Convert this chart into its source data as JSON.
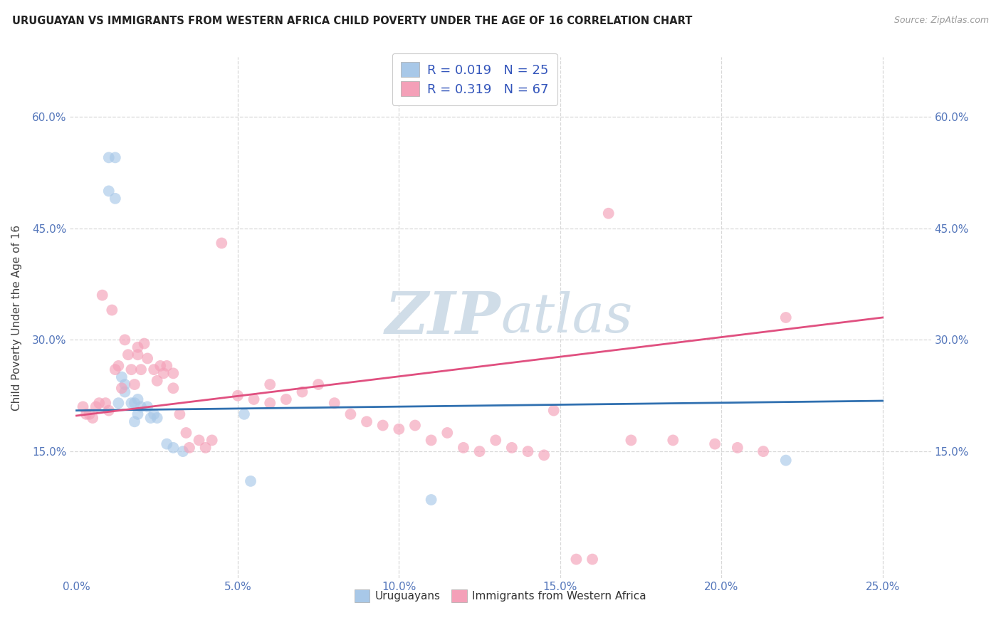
{
  "title": "URUGUAYAN VS IMMIGRANTS FROM WESTERN AFRICA CHILD POVERTY UNDER THE AGE OF 16 CORRELATION CHART",
  "source": "Source: ZipAtlas.com",
  "ylabel": "Child Poverty Under the Age of 16",
  "xlabel_vals": [
    0.0,
    0.05,
    0.1,
    0.15,
    0.2,
    0.25
  ],
  "ylabel_vals": [
    0.15,
    0.3,
    0.45,
    0.6
  ],
  "ylim": [
    -0.02,
    0.68
  ],
  "xlim": [
    -0.002,
    0.265
  ],
  "legend_bottom_blue": "Uruguayans",
  "legend_bottom_pink": "Immigrants from Western Africa",
  "blue_color": "#a8c8e8",
  "pink_color": "#f4a0b8",
  "blue_line_color": "#3070b0",
  "pink_line_color": "#e05080",
  "background_color": "#ffffff",
  "grid_color": "#d8d8d8",
  "watermark_color": "#d0dde8",
  "blue_scatter_x": [
    0.01,
    0.012,
    0.01,
    0.012,
    0.014,
    0.015,
    0.015,
    0.013,
    0.017,
    0.018,
    0.019,
    0.02,
    0.019,
    0.018,
    0.022,
    0.024,
    0.023,
    0.025,
    0.028,
    0.03,
    0.033,
    0.052,
    0.054,
    0.11,
    0.22
  ],
  "blue_scatter_y": [
    0.545,
    0.545,
    0.5,
    0.49,
    0.25,
    0.24,
    0.23,
    0.215,
    0.215,
    0.215,
    0.22,
    0.21,
    0.2,
    0.19,
    0.21,
    0.2,
    0.195,
    0.195,
    0.16,
    0.155,
    0.15,
    0.2,
    0.11,
    0.085,
    0.138
  ],
  "pink_scatter_x": [
    0.002,
    0.003,
    0.004,
    0.005,
    0.006,
    0.007,
    0.008,
    0.009,
    0.01,
    0.011,
    0.012,
    0.013,
    0.014,
    0.015,
    0.016,
    0.017,
    0.018,
    0.019,
    0.019,
    0.02,
    0.021,
    0.022,
    0.024,
    0.025,
    0.026,
    0.027,
    0.028,
    0.03,
    0.03,
    0.032,
    0.034,
    0.035,
    0.038,
    0.04,
    0.042,
    0.045,
    0.05,
    0.055,
    0.06,
    0.06,
    0.065,
    0.07,
    0.075,
    0.08,
    0.085,
    0.09,
    0.095,
    0.1,
    0.105,
    0.11,
    0.115,
    0.12,
    0.125,
    0.13,
    0.135,
    0.14,
    0.145,
    0.148,
    0.155,
    0.16,
    0.165,
    0.172,
    0.185,
    0.198,
    0.205,
    0.213,
    0.22
  ],
  "pink_scatter_y": [
    0.21,
    0.2,
    0.2,
    0.195,
    0.21,
    0.215,
    0.36,
    0.215,
    0.205,
    0.34,
    0.26,
    0.265,
    0.235,
    0.3,
    0.28,
    0.26,
    0.24,
    0.28,
    0.29,
    0.26,
    0.295,
    0.275,
    0.26,
    0.245,
    0.265,
    0.255,
    0.265,
    0.255,
    0.235,
    0.2,
    0.175,
    0.155,
    0.165,
    0.155,
    0.165,
    0.43,
    0.225,
    0.22,
    0.215,
    0.24,
    0.22,
    0.23,
    0.24,
    0.215,
    0.2,
    0.19,
    0.185,
    0.18,
    0.185,
    0.165,
    0.175,
    0.155,
    0.15,
    0.165,
    0.155,
    0.15,
    0.145,
    0.205,
    0.005,
    0.005,
    0.47,
    0.165,
    0.165,
    0.16,
    0.155,
    0.15,
    0.33
  ]
}
